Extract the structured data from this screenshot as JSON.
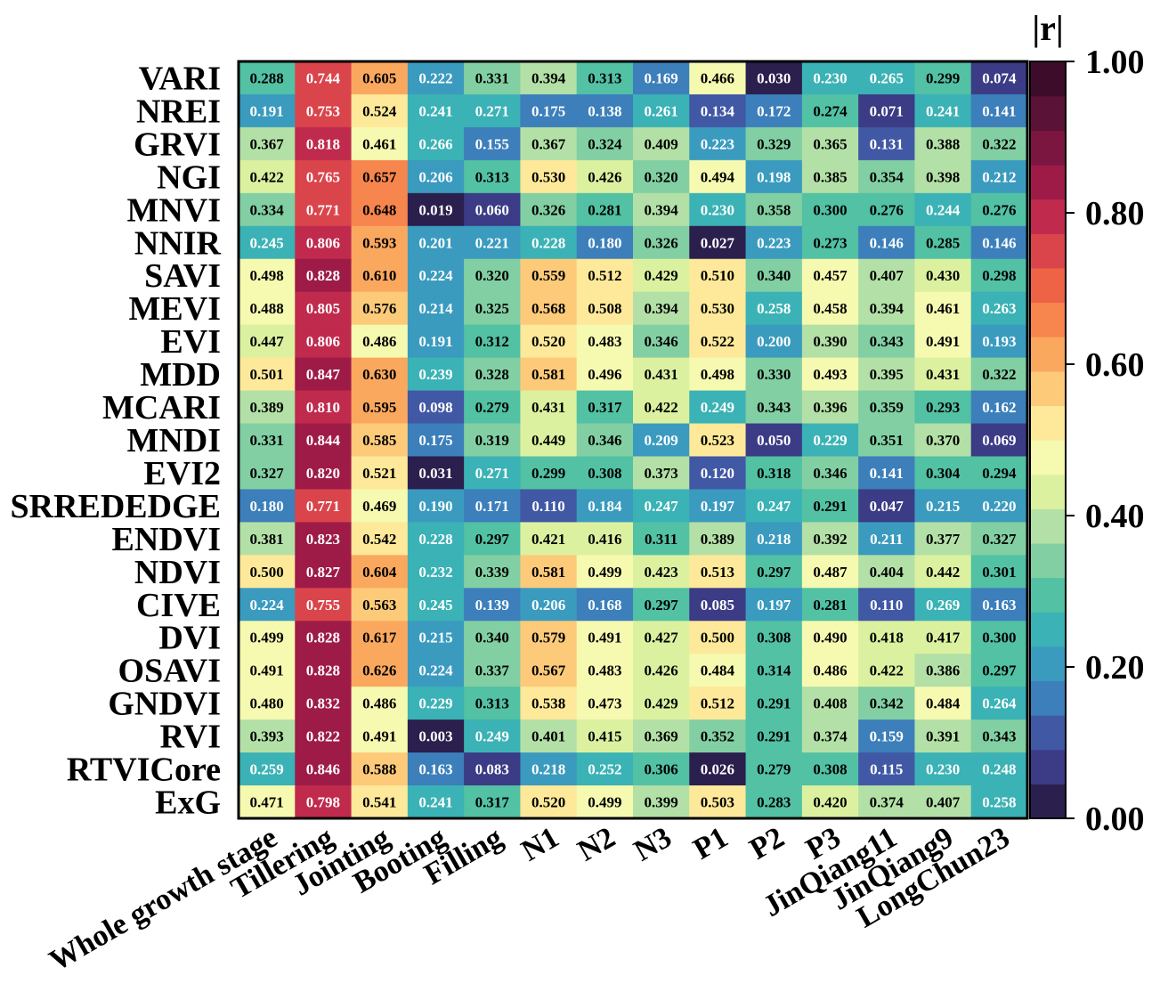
{
  "chart_data": {
    "type": "heatmap",
    "rows": [
      "VARI",
      "NREI",
      "GRVI",
      "NGI",
      "MNVI",
      "NNIR",
      "SAVI",
      "MEVI",
      "EVI",
      "MDD",
      "MCARI",
      "MNDI",
      "EVI2",
      "SRREDEDGE",
      "ENDVI",
      "NDVI",
      "CIVE",
      "DVI",
      "OSAVI",
      "GNDVI",
      "RVI",
      "RTVICore",
      "ExG"
    ],
    "columns": [
      "Whole growth stage",
      "Tillering",
      "Jointing",
      "Booting",
      "Filling",
      "N1",
      "N2",
      "N3",
      "P1",
      "P2",
      "P3",
      "JinQiang11",
      "JinQiang9",
      "LongChun23"
    ],
    "values": [
      [
        "0.288",
        "0.744",
        "0.605",
        "0.222",
        "0.331",
        "0.394",
        "0.313",
        "0.169",
        "0.466",
        "0.030",
        "0.230",
        "0.265",
        "0.299",
        "0.074"
      ],
      [
        "0.191",
        "0.753",
        "0.524",
        "0.241",
        "0.271",
        "0.175",
        "0.138",
        "0.261",
        "0.134",
        "0.172",
        "0.274",
        "0.071",
        "0.241",
        "0.141"
      ],
      [
        "0.367",
        "0.818",
        "0.461",
        "0.266",
        "0.155",
        "0.367",
        "0.324",
        "0.409",
        "0.223",
        "0.329",
        "0.365",
        "0.131",
        "0.388",
        "0.322"
      ],
      [
        "0.422",
        "0.765",
        "0.657",
        "0.206",
        "0.313",
        "0.530",
        "0.426",
        "0.320",
        "0.494",
        "0.198",
        "0.385",
        "0.354",
        "0.398",
        "0.212"
      ],
      [
        "0.334",
        "0.771",
        "0.648",
        "0.019",
        "0.060",
        "0.326",
        "0.281",
        "0.394",
        "0.230",
        "0.358",
        "0.300",
        "0.276",
        "0.244",
        "0.276"
      ],
      [
        "0.245",
        "0.806",
        "0.593",
        "0.201",
        "0.221",
        "0.228",
        "0.180",
        "0.326",
        "0.027",
        "0.223",
        "0.273",
        "0.146",
        "0.285",
        "0.146"
      ],
      [
        "0.498",
        "0.828",
        "0.610",
        "0.224",
        "0.320",
        "0.559",
        "0.512",
        "0.429",
        "0.510",
        "0.340",
        "0.457",
        "0.407",
        "0.430",
        "0.298"
      ],
      [
        "0.488",
        "0.805",
        "0.576",
        "0.214",
        "0.325",
        "0.568",
        "0.508",
        "0.394",
        "0.530",
        "0.258",
        "0.458",
        "0.394",
        "0.461",
        "0.263"
      ],
      [
        "0.447",
        "0.806",
        "0.486",
        "0.191",
        "0.312",
        "0.520",
        "0.483",
        "0.346",
        "0.522",
        "0.200",
        "0.390",
        "0.343",
        "0.491",
        "0.193"
      ],
      [
        "0.501",
        "0.847",
        "0.630",
        "0.239",
        "0.328",
        "0.581",
        "0.496",
        "0.431",
        "0.498",
        "0.330",
        "0.493",
        "0.395",
        "0.431",
        "0.322"
      ],
      [
        "0.389",
        "0.810",
        "0.595",
        "0.098",
        "0.279",
        "0.431",
        "0.317",
        "0.422",
        "0.249",
        "0.343",
        "0.396",
        "0.359",
        "0.293",
        "0.162"
      ],
      [
        "0.331",
        "0.844",
        "0.585",
        "0.175",
        "0.319",
        "0.449",
        "0.346",
        "0.209",
        "0.523",
        "0.050",
        "0.229",
        "0.351",
        "0.370",
        "0.069"
      ],
      [
        "0.327",
        "0.820",
        "0.521",
        "0.031",
        "0.271",
        "0.299",
        "0.308",
        "0.373",
        "0.120",
        "0.318",
        "0.346",
        "0.141",
        "0.304",
        "0.294"
      ],
      [
        "0.180",
        "0.771",
        "0.469",
        "0.190",
        "0.171",
        "0.110",
        "0.184",
        "0.247",
        "0.197",
        "0.247",
        "0.291",
        "0.047",
        "0.215",
        "0.220"
      ],
      [
        "0.381",
        "0.823",
        "0.542",
        "0.228",
        "0.297",
        "0.421",
        "0.416",
        "0.311",
        "0.389",
        "0.218",
        "0.392",
        "0.211",
        "0.377",
        "0.327"
      ],
      [
        "0.500",
        "0.827",
        "0.604",
        "0.232",
        "0.339",
        "0.581",
        "0.499",
        "0.423",
        "0.513",
        "0.297",
        "0.487",
        "0.404",
        "0.442",
        "0.301"
      ],
      [
        "0.224",
        "0.755",
        "0.563",
        "0.245",
        "0.139",
        "0.206",
        "0.168",
        "0.297",
        "0.085",
        "0.197",
        "0.281",
        "0.110",
        "0.269",
        "0.163"
      ],
      [
        "0.499",
        "0.828",
        "0.617",
        "0.215",
        "0.340",
        "0.579",
        "0.491",
        "0.427",
        "0.500",
        "0.308",
        "0.490",
        "0.418",
        "0.417",
        "0.300"
      ],
      [
        "0.491",
        "0.828",
        "0.626",
        "0.224",
        "0.337",
        "0.567",
        "0.483",
        "0.426",
        "0.484",
        "0.314",
        "0.486",
        "0.422",
        "0.386",
        "0.297"
      ],
      [
        "0.480",
        "0.832",
        "0.486",
        "0.229",
        "0.313",
        "0.538",
        "0.473",
        "0.429",
        "0.512",
        "0.291",
        "0.408",
        "0.342",
        "0.484",
        "0.264"
      ],
      [
        "0.393",
        "0.822",
        "0.491",
        "0.003",
        "0.249",
        "0.401",
        "0.415",
        "0.369",
        "0.352",
        "0.291",
        "0.374",
        "0.159",
        "0.391",
        "0.343"
      ],
      [
        "0.259",
        "0.846",
        "0.588",
        "0.163",
        "0.083",
        "0.218",
        "0.252",
        "0.306",
        "0.026",
        "0.279",
        "0.308",
        "0.115",
        "0.230",
        "0.248"
      ],
      [
        "0.471",
        "0.798",
        "0.541",
        "0.241",
        "0.317",
        "0.520",
        "0.499",
        "0.399",
        "0.503",
        "0.283",
        "0.420",
        "0.374",
        "0.407",
        "0.258"
      ]
    ],
    "colorbar": {
      "title": "|r|",
      "range": [
        0,
        1
      ],
      "ticks": [
        "1.00",
        "0.80",
        "0.60",
        "0.40",
        "0.20",
        "0.00"
      ],
      "tick_values": [
        1.0,
        0.8,
        0.6,
        0.4,
        0.2,
        0.0
      ],
      "levels": 24,
      "colormap": "Spectral",
      "colors_low_to_high": [
        "#2a1f4d",
        "#3b3b86",
        "#4158a5",
        "#3c7fbb",
        "#3a9bbf",
        "#3bb2b5",
        "#52c1a4",
        "#82cfa3",
        "#b3e0a6",
        "#dbf1a0",
        "#f6f9b0",
        "#fde999",
        "#fdca7a",
        "#fba85f",
        "#f7854e",
        "#ee6346",
        "#da444b",
        "#c02a4d",
        "#9e1b48",
        "#7a1640",
        "#5a1236",
        "#3d0c2a"
      ]
    },
    "grid": false
  }
}
